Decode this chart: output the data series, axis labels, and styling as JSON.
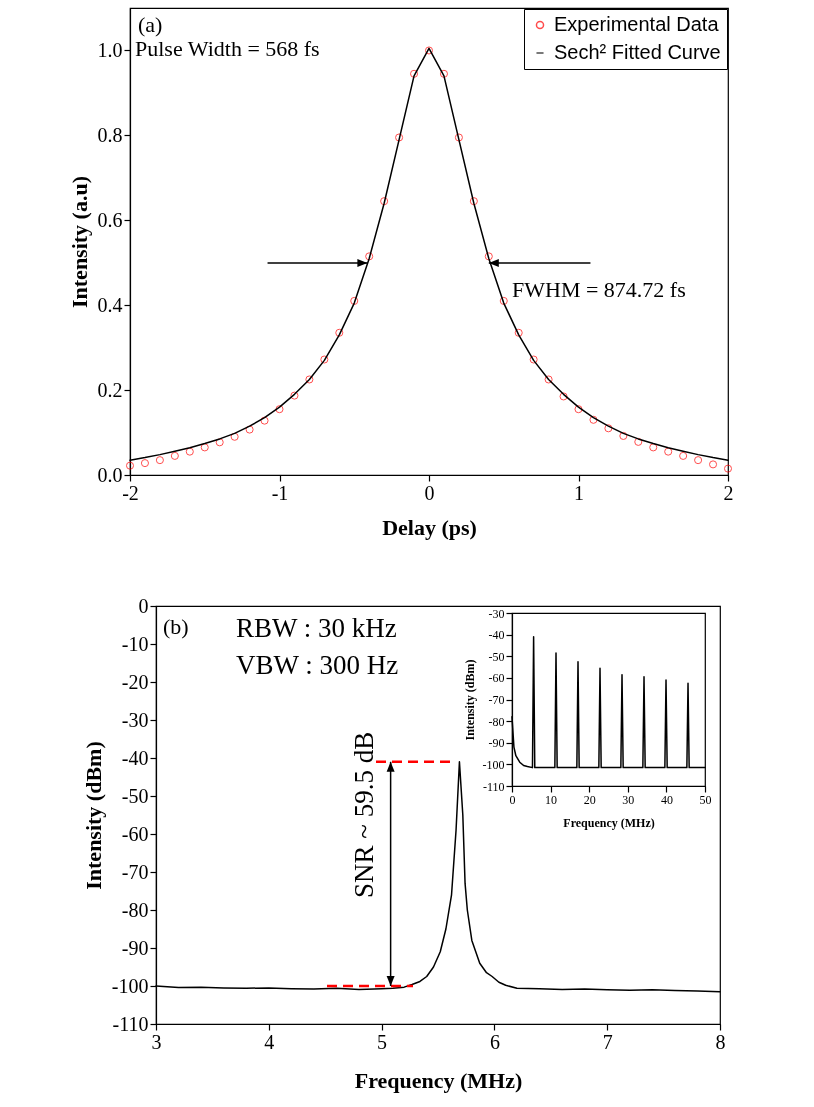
{
  "chart_data": [
    {
      "type": "line",
      "xlabel": "Delay (ps)",
      "ylabel": "Intensity (a.u)",
      "xlim": [
        -2,
        2
      ],
      "xticks": [
        -2,
        -1,
        0,
        1,
        2
      ],
      "ylim": [
        0,
        1.1
      ],
      "yticks": [
        {
          "value": 0,
          "label": "0.0"
        },
        {
          "value": 0.2,
          "label": "0.2"
        },
        {
          "value": 0.4,
          "label": "0.4"
        },
        {
          "value": 0.6,
          "label": "0.6"
        },
        {
          "value": 0.8,
          "label": "0.8"
        },
        {
          "value": 1,
          "label": "1.0"
        }
      ],
      "legend": "top right",
      "annotations": [
        "(a)",
        "Pulse Width = 568 fs",
        "FWHM = 874.72 fs"
      ],
      "x": [
        -2,
        -1.9,
        -1.8,
        -1.7,
        -1.6,
        -1.5,
        -1.4,
        -1.3,
        -1.2,
        -1.1,
        -1,
        -0.9,
        -0.8,
        -0.7,
        -0.6,
        -0.5,
        -0.4,
        -0.3,
        -0.2,
        -0.1,
        0,
        0.1,
        0.2,
        0.3,
        0.4,
        0.5,
        0.6,
        0.7,
        0.8,
        0.9,
        1,
        1.1,
        1.2,
        1.3,
        1.4,
        1.5,
        1.6,
        1.7,
        1.8,
        1.9,
        2
      ],
      "series": [
        {
          "name": "Experimental Data",
          "type": "scatter",
          "color": "#ff0000",
          "values": [
            0.022,
            0.028,
            0.035,
            0.045,
            0.055,
            0.065,
            0.077,
            0.09,
            0.107,
            0.128,
            0.155,
            0.187,
            0.225,
            0.272,
            0.335,
            0.41,
            0.515,
            0.645,
            0.795,
            0.945,
            1.0,
            0.945,
            0.795,
            0.645,
            0.515,
            0.41,
            0.335,
            0.272,
            0.225,
            0.185,
            0.155,
            0.13,
            0.11,
            0.092,
            0.078,
            0.065,
            0.055,
            0.045,
            0.035,
            0.025,
            0.015
          ]
        },
        {
          "name": "Sech² Fitted Curve",
          "type": "line",
          "color": "#000000",
          "values": [
            0.035,
            0.041,
            0.048,
            0.056,
            0.064,
            0.074,
            0.085,
            0.098,
            0.115,
            0.135,
            0.16,
            0.19,
            0.225,
            0.27,
            0.33,
            0.405,
            0.51,
            0.64,
            0.79,
            0.94,
            1.005,
            0.94,
            0.79,
            0.64,
            0.51,
            0.405,
            0.33,
            0.27,
            0.225,
            0.19,
            0.16,
            0.135,
            0.115,
            0.098,
            0.085,
            0.074,
            0.064,
            0.056,
            0.048,
            0.041,
            0.035
          ]
        }
      ]
    },
    {
      "type": "line",
      "xlabel": "Frequency (MHz)",
      "ylabel": "Intensity (dBm)",
      "xlim": [
        3,
        8
      ],
      "xticks": [
        3,
        4,
        5,
        6,
        7,
        8
      ],
      "ylim": [
        -110,
        0
      ],
      "yticks": [
        0,
        -10,
        -20,
        -30,
        -40,
        -50,
        -60,
        -70,
        -80,
        -90,
        -100,
        -110
      ],
      "annotations": [
        "(b)",
        "RBW : 30 kHz",
        "VBW : 300 Hz",
        {
          "text": "SNR ~ 59.5 dB",
          "x": 5.08,
          "y": -41
        }
      ],
      "ref_lines": [
        {
          "axis": "y",
          "value": -41,
          "color": "#ff0000",
          "line_style": "dashed"
        },
        {
          "axis": "y",
          "value": -100,
          "color": "#ff0000",
          "line_style": "dashed"
        }
      ],
      "series": [
        {
          "color": "#000000",
          "x": [
            3,
            3.2,
            3.4,
            3.6,
            3.8,
            4,
            4.2,
            4.4,
            4.6,
            4.8,
            5,
            5.1,
            5.2,
            5.27,
            5.34,
            5.4,
            5.46,
            5.52,
            5.57,
            5.62,
            5.66,
            5.69,
            5.72,
            5.74,
            5.76,
            5.8,
            5.87,
            5.93,
            5.98,
            6.04,
            6.1,
            6.2,
            6.4,
            6.6,
            6.8,
            7,
            7.2,
            7.4,
            7.6,
            7.8,
            8
          ],
          "values": [
            -100,
            -100.4,
            -100.3,
            -100.5,
            -100.6,
            -100.5,
            -100.7,
            -100.8,
            -100.6,
            -100.9,
            -100.7,
            -100.6,
            -100.3,
            -99.6,
            -98.8,
            -97.5,
            -95,
            -91,
            -85,
            -76,
            -59,
            -41,
            -55,
            -73,
            -80,
            -88,
            -94,
            -96.5,
            -97.5,
            -99,
            -99.8,
            -100.6,
            -100.7,
            -100.9,
            -100.8,
            -101,
            -101.1,
            -101,
            -101.2,
            -101.3,
            -101.5
          ]
        }
      ]
    },
    {
      "type": "line",
      "xlabel": "Frequency (MHz)",
      "ylabel": "Intensity (dBm)",
      "xlim": [
        0,
        50
      ],
      "xticks": [
        0,
        10,
        20,
        30,
        40,
        50
      ],
      "ylim": [
        -110,
        -30
      ],
      "yticks": [
        -30,
        -40,
        -50,
        -60,
        -70,
        -80,
        -90,
        -100,
        -110
      ],
      "series": [
        {
          "color": "#000000",
          "x": [
            0,
            0.5,
            1,
            2,
            3,
            4,
            5.3,
            5.6,
            5.9,
            11.1,
            11.4,
            11.7,
            16.8,
            17.1,
            17.4,
            22.5,
            22.8,
            23.1,
            28.2,
            28.5,
            28.8,
            33.9,
            34.2,
            34.5,
            39.6,
            39.9,
            40.2,
            45.3,
            45.6,
            45.9,
            50
          ],
          "values": [
            -78,
            -92,
            -96,
            -99,
            -100.5,
            -101,
            -101.5,
            -41,
            -101.5,
            -101.5,
            -48.5,
            -101.5,
            -101.5,
            -52.5,
            -101.5,
            -101.5,
            -55.5,
            -101.5,
            -101.5,
            -58.5,
            -101.5,
            -101.5,
            -59.5,
            -101.5,
            -101.5,
            -61,
            -101.5,
            -101.5,
            -62.5,
            -101.5,
            -101.5
          ]
        }
      ]
    }
  ]
}
